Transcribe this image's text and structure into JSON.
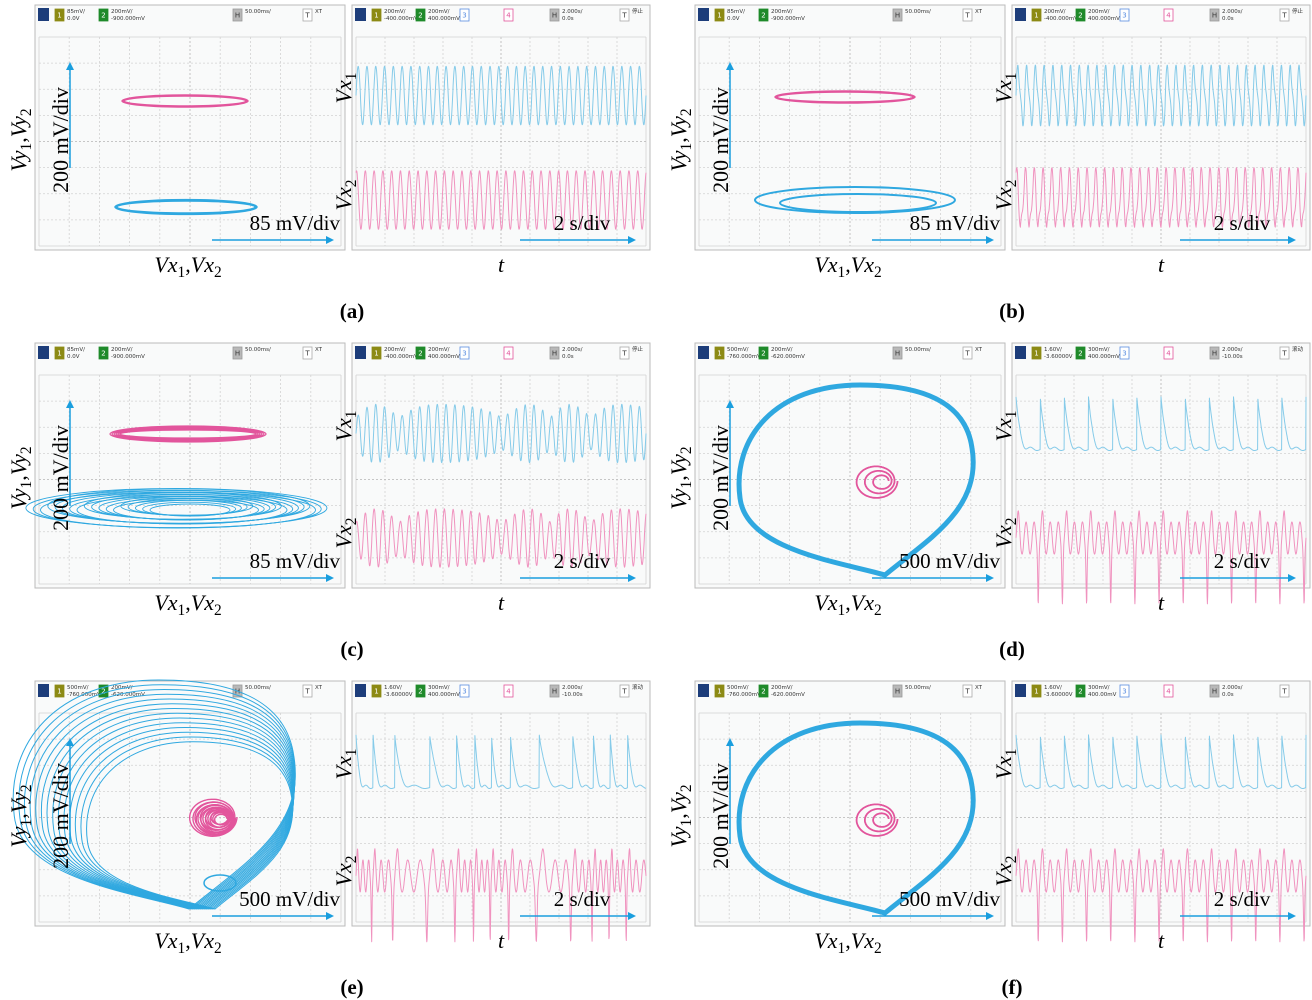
{
  "panels": [
    {
      "label": "(a)",
      "xy": {
        "header": [
          {
            "id": "1",
            "lines": [
              "85mV/",
              "0.0V"
            ]
          },
          {
            "id": "2",
            "lines": [
              "200mV/",
              "-900.000mV"
            ]
          },
          {
            "id": "H",
            "lines": [
              "50.00ms/"
            ]
          },
          {
            "id": "T",
            "lines": [
              "XT"
            ]
          }
        ],
        "y_label": "Vy1,Vy2",
        "x_label": "Vx1,Vx2",
        "y_scale": "200 mV/div",
        "x_scale": "85 mV/div"
      },
      "time": {
        "header": [
          {
            "id": "1",
            "lines": [
              "200mV/",
              "-400.000mV"
            ]
          },
          {
            "id": "2",
            "lines": [
              "200mV/",
              "400.000mV"
            ]
          },
          {
            "id": "3",
            "lines": []
          },
          {
            "id": "4",
            "lines": []
          },
          {
            "id": "H",
            "lines": [
              "2.000s/",
              "0.0s"
            ]
          },
          {
            "id": "T",
            "lines": [
              "停止"
            ]
          }
        ],
        "upper_label": "Vx1",
        "lower_label": "Vx2",
        "x_label": "t",
        "x_scale": "2 s/div"
      }
    },
    {
      "label": "(b)",
      "xy": {
        "header": [
          {
            "id": "1",
            "lines": [
              "85mV/",
              "0.0V"
            ]
          },
          {
            "id": "2",
            "lines": [
              "200mV/",
              "-900.000mV"
            ]
          },
          {
            "id": "H",
            "lines": [
              "50.00ms/"
            ]
          },
          {
            "id": "T",
            "lines": [
              "XT"
            ]
          }
        ],
        "y_label": "Vy1,Vy2",
        "x_label": "Vx1,Vx2",
        "y_scale": "200 mV/div",
        "x_scale": "85 mV/div"
      },
      "time": {
        "header": [
          {
            "id": "1",
            "lines": [
              "200mV/",
              "-400.000mV"
            ]
          },
          {
            "id": "2",
            "lines": [
              "200mV/",
              "400.000mV"
            ]
          },
          {
            "id": "3",
            "lines": []
          },
          {
            "id": "4",
            "lines": []
          },
          {
            "id": "H",
            "lines": [
              "2.000s/",
              "0.0s"
            ]
          },
          {
            "id": "T",
            "lines": [
              "停止"
            ]
          }
        ],
        "upper_label": "Vx1",
        "lower_label": "Vx2",
        "x_label": "t",
        "x_scale": "2 s/div"
      }
    },
    {
      "label": "(c)",
      "xy": {
        "header": [
          {
            "id": "1",
            "lines": [
              "85mV/",
              "0.0V"
            ]
          },
          {
            "id": "2",
            "lines": [
              "200mV/",
              "-900.000mV"
            ]
          },
          {
            "id": "H",
            "lines": [
              "50.00ms/"
            ]
          },
          {
            "id": "T",
            "lines": [
              "XT"
            ]
          }
        ],
        "y_label": "Vy1,Vy2",
        "x_label": "Vx1,Vx2",
        "y_scale": "200 mV/div",
        "x_scale": "85 mV/div"
      },
      "time": {
        "header": [
          {
            "id": "1",
            "lines": [
              "200mV/",
              "-400.000mV"
            ]
          },
          {
            "id": "2",
            "lines": [
              "200mV/",
              "400.000mV"
            ]
          },
          {
            "id": "3",
            "lines": []
          },
          {
            "id": "4",
            "lines": []
          },
          {
            "id": "H",
            "lines": [
              "2.000s/",
              "0.0s"
            ]
          },
          {
            "id": "T",
            "lines": [
              "停止"
            ]
          }
        ],
        "upper_label": "Vx1",
        "lower_label": "Vx2",
        "x_label": "t",
        "x_scale": "2 s/div"
      }
    },
    {
      "label": "(d)",
      "xy": {
        "header": [
          {
            "id": "1",
            "lines": [
              "500mV/",
              "-760.000mV"
            ]
          },
          {
            "id": "2",
            "lines": [
              "200mV/",
              "-620.000mV"
            ]
          },
          {
            "id": "H",
            "lines": [
              "50.00ms/"
            ]
          },
          {
            "id": "T",
            "lines": [
              "XT"
            ]
          }
        ],
        "y_label": "Vy1,Vy2",
        "x_label": "Vx1,Vx2",
        "y_scale": "200 mV/div",
        "x_scale": "500 mV/div"
      },
      "time": {
        "header": [
          {
            "id": "1",
            "lines": [
              "1.60V/",
              "-3.60000V"
            ]
          },
          {
            "id": "2",
            "lines": [
              "300mV/",
              "400.000mV"
            ]
          },
          {
            "id": "3",
            "lines": []
          },
          {
            "id": "4",
            "lines": []
          },
          {
            "id": "H",
            "lines": [
              "2.000s/",
              "-10.00s"
            ]
          },
          {
            "id": "T",
            "lines": [
              "滚动"
            ]
          }
        ],
        "upper_label": "Vx1",
        "lower_label": "Vx2",
        "x_label": "t",
        "x_scale": "2 s/div"
      }
    },
    {
      "label": "(e)",
      "xy": {
        "header": [
          {
            "id": "1",
            "lines": [
              "500mV/",
              "-760.000mV"
            ]
          },
          {
            "id": "2",
            "lines": [
              "200mV/",
              "-620.000mV"
            ]
          },
          {
            "id": "H",
            "lines": [
              "50.00ms/"
            ]
          },
          {
            "id": "T",
            "lines": [
              "XT"
            ]
          }
        ],
        "y_label": "Vy1,Vy2",
        "x_label": "Vx1,Vx2",
        "y_scale": "200 mV/div",
        "x_scale": "500 mV/div"
      },
      "time": {
        "header": [
          {
            "id": "1",
            "lines": [
              "1.60V/",
              "-3.60000V"
            ]
          },
          {
            "id": "2",
            "lines": [
              "300mV/",
              "400.000mV"
            ]
          },
          {
            "id": "3",
            "lines": []
          },
          {
            "id": "4",
            "lines": []
          },
          {
            "id": "H",
            "lines": [
              "2.000s/",
              "-10.00s"
            ]
          },
          {
            "id": "T",
            "lines": [
              "滚动"
            ]
          }
        ],
        "upper_label": "Vx1",
        "lower_label": "Vx2",
        "x_label": "t",
        "x_scale": "2 s/div"
      }
    },
    {
      "label": "(f)",
      "xy": {
        "header": [
          {
            "id": "1",
            "lines": [
              "500mV/",
              "-760.000mV"
            ]
          },
          {
            "id": "2",
            "lines": [
              "200mV/",
              "-620.000mV"
            ]
          },
          {
            "id": "H",
            "lines": [
              "50.00ms/"
            ]
          },
          {
            "id": "T",
            "lines": [
              "XT"
            ]
          }
        ],
        "y_label": "Vy1,Vy2",
        "x_label": "Vx1,Vx2",
        "y_scale": "200 mV/div",
        "x_scale": "500 mV/div"
      },
      "time": {
        "header": [
          {
            "id": "1",
            "lines": [
              "1.60V/",
              "-3.60000V"
            ]
          },
          {
            "id": "2",
            "lines": [
              "300mV/",
              "400.00mV"
            ]
          },
          {
            "id": "3",
            "lines": []
          },
          {
            "id": "4",
            "lines": []
          },
          {
            "id": "H",
            "lines": [
              "2.000s/",
              "0.0s"
            ]
          },
          {
            "id": "T",
            "lines": []
          }
        ],
        "upper_label": "Vx1",
        "lower_label": "Vx2",
        "x_label": "t",
        "x_scale": "2 s/div"
      }
    }
  ]
}
